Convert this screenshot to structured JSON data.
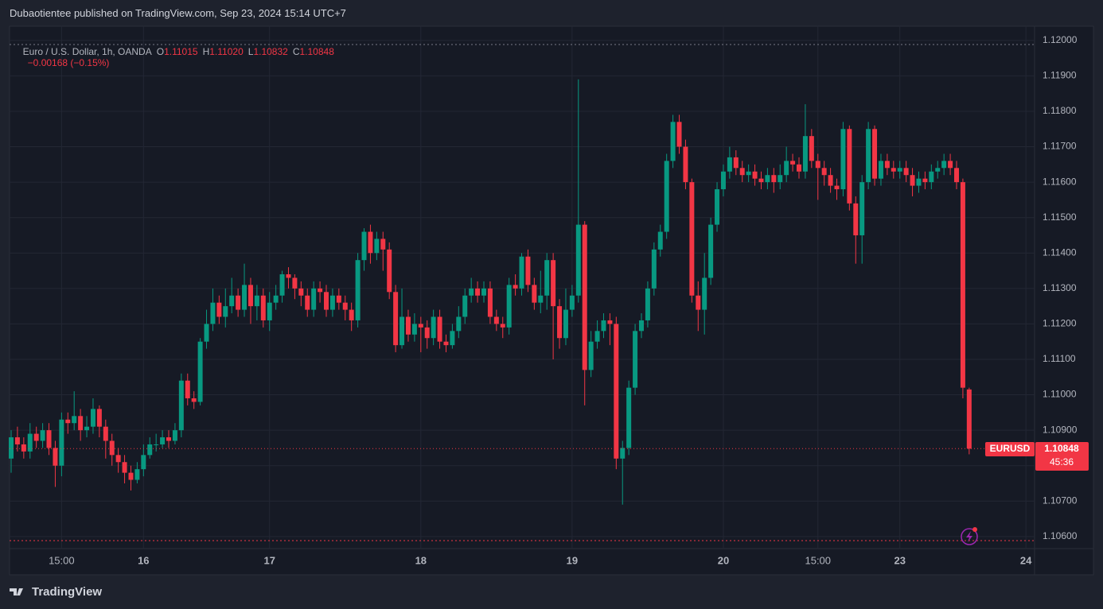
{
  "header": {
    "publisher": "Dubaotientee published on TradingView.com, Sep 23, 2024 15:14 UTC+7"
  },
  "legend": {
    "symbol": "Euro / U.S. Dollar, 1h, OANDA",
    "items": [
      {
        "key": "O",
        "value": "1.11015"
      },
      {
        "key": "H",
        "value": "1.11020"
      },
      {
        "key": "L",
        "value": "1.10832"
      },
      {
        "key": "C",
        "value": "1.10848"
      }
    ],
    "change": "−0.00168 (−0.15%)"
  },
  "price_tag": {
    "symbol": "EURUSD",
    "price": "1.10848",
    "countdown": "45:36"
  },
  "footer": {
    "brand": "TradingView"
  },
  "chart_data": {
    "type": "candlestick",
    "up_color": "#089981",
    "down_color": "#f23645",
    "grid": true,
    "ylim": [
      1.10566,
      1.1204
    ],
    "yticks": [
      {
        "value": 1.106,
        "label": "1.10600"
      },
      {
        "value": 1.107,
        "label": "1.10700"
      },
      {
        "value": 1.108,
        "label": "1.10800"
      },
      {
        "value": 1.109,
        "label": "1.10900"
      },
      {
        "value": 1.11,
        "label": "1.11000"
      },
      {
        "value": 1.111,
        "label": "1.11100"
      },
      {
        "value": 1.112,
        "label": "1.11200"
      },
      {
        "value": 1.113,
        "label": "1.11300"
      },
      {
        "value": 1.114,
        "label": "1.11400"
      },
      {
        "value": 1.115,
        "label": "1.11500"
      },
      {
        "value": 1.116,
        "label": "1.11600"
      },
      {
        "value": 1.117,
        "label": "1.11700"
      },
      {
        "value": 1.118,
        "label": "1.11800"
      },
      {
        "value": 1.119,
        "label": "1.11900"
      },
      {
        "value": 1.12,
        "label": "1.12000"
      }
    ],
    "categories": [
      null,
      null,
      null,
      null,
      null,
      null,
      null,
      null,
      "15:00",
      null,
      null,
      null,
      null,
      null,
      null,
      null,
      null,
      null,
      null,
      null,
      null,
      "16",
      null,
      null,
      null,
      null,
      null,
      null,
      null,
      null,
      null,
      null,
      null,
      null,
      null,
      null,
      null,
      null,
      null,
      null,
      null,
      "17",
      null,
      null,
      null,
      null,
      null,
      null,
      null,
      null,
      null,
      null,
      null,
      null,
      null,
      null,
      null,
      null,
      null,
      null,
      null,
      null,
      null,
      null,
      null,
      "18",
      null,
      null,
      null,
      null,
      null,
      null,
      null,
      null,
      null,
      null,
      null,
      null,
      null,
      null,
      null,
      null,
      null,
      null,
      null,
      null,
      null,
      null,
      null,
      "19",
      null,
      null,
      null,
      null,
      null,
      null,
      null,
      null,
      null,
      null,
      null,
      null,
      null,
      null,
      null,
      null,
      null,
      null,
      null,
      null,
      null,
      null,
      null,
      "20",
      null,
      null,
      null,
      null,
      null,
      null,
      null,
      null,
      null,
      null,
      null,
      null,
      null,
      null,
      "15:00",
      null,
      null,
      null,
      null,
      null,
      null,
      null,
      null,
      null,
      null,
      null,
      null,
      "23",
      null,
      null,
      null,
      null,
      null,
      null,
      null,
      null,
      null,
      null,
      null,
      null,
      null,
      null,
      null,
      null,
      null,
      null,
      null,
      "24"
    ],
    "open": [
      1.1082,
      1.1088,
      1.1086,
      1.1084,
      1.1089,
      1.1087,
      1.109,
      1.1085,
      1.108,
      1.1093,
      1.1092,
      1.1094,
      1.109,
      1.1091,
      1.1096,
      1.1091,
      1.1087,
      1.1083,
      1.1081,
      1.1078,
      1.1076,
      1.1079,
      1.1083,
      1.1086,
      1.1086,
      1.1088,
      1.1087,
      1.109,
      1.1104,
      1.1099,
      1.1098,
      1.1115,
      1.112,
      1.1126,
      1.1122,
      1.1125,
      1.1128,
      1.1124,
      1.1131,
      1.1125,
      1.1128,
      1.1121,
      1.1126,
      1.1128,
      1.1134,
      1.1133,
      1.113,
      1.1128,
      1.1124,
      1.113,
      1.1129,
      1.1124,
      1.1128,
      1.1126,
      1.1124,
      1.1121,
      1.1138,
      1.1146,
      1.114,
      1.1144,
      1.1141,
      1.1129,
      1.1114,
      1.1122,
      1.1117,
      1.112,
      1.1119,
      1.1116,
      1.1122,
      1.1115,
      1.1114,
      1.1118,
      1.1122,
      1.1128,
      1.113,
      1.1128,
      1.113,
      1.1122,
      1.112,
      1.1119,
      1.1131,
      1.113,
      1.1139,
      1.1131,
      1.1126,
      1.1128,
      1.1138,
      1.1125,
      1.1116,
      1.1124,
      1.1128,
      1.1148,
      1.1107,
      1.1115,
      1.1118,
      1.1121,
      1.112,
      1.1082,
      1.1085,
      1.1102,
      1.1118,
      1.1121,
      1.113,
      1.1141,
      1.1146,
      1.1166,
      1.1177,
      1.117,
      1.116,
      1.1128,
      1.1124,
      1.1133,
      1.1148,
      1.1158,
      1.1163,
      1.1167,
      1.1164,
      1.1162,
      1.1163,
      1.1161,
      1.116,
      1.1162,
      1.116,
      1.1162,
      1.1166,
      1.1165,
      1.1163,
      1.1173,
      1.1166,
      1.1164,
      1.1162,
      1.1159,
      1.1158,
      1.1175,
      1.1154,
      1.1145,
      1.116,
      1.1175,
      1.1161,
      1.1166,
      1.1164,
      1.1163,
      1.1164,
      1.1162,
      1.1159,
      1.1161,
      1.116,
      1.1163,
      1.1164,
      1.1166,
      1.1164,
      1.116,
      1.11015,
      null,
      null,
      null,
      null,
      null,
      null,
      null,
      null,
      null
    ],
    "high": [
      1.109,
      1.1091,
      1.1088,
      1.1092,
      1.1091,
      1.1092,
      1.1092,
      1.1087,
      1.1095,
      1.1095,
      1.1101,
      1.1096,
      1.1094,
      1.1099,
      1.1097,
      1.1093,
      1.1089,
      1.1085,
      1.1083,
      1.108,
      1.1081,
      1.1086,
      1.1088,
      1.1089,
      1.109,
      1.109,
      1.1092,
      1.1106,
      1.1106,
      1.1101,
      1.1116,
      1.1124,
      1.113,
      1.1128,
      1.113,
      1.1133,
      1.113,
      1.1137,
      1.1133,
      1.1131,
      1.113,
      1.1129,
      1.1131,
      1.1135,
      1.1136,
      1.1134,
      1.1132,
      1.113,
      1.1132,
      1.1132,
      1.1131,
      1.113,
      1.113,
      1.1128,
      1.1126,
      1.114,
      1.1147,
      1.1148,
      1.1146,
      1.1146,
      1.1143,
      1.1131,
      1.113,
      1.1124,
      1.1123,
      1.1122,
      1.1121,
      1.1124,
      1.1124,
      1.1117,
      1.112,
      1.1125,
      1.113,
      1.1133,
      1.1132,
      1.1132,
      1.1132,
      1.1124,
      1.1122,
      1.1133,
      1.1134,
      1.114,
      1.1141,
      1.1133,
      1.1135,
      1.114,
      1.114,
      1.1127,
      1.113,
      1.1131,
      1.1189,
      1.1149,
      1.1118,
      1.1121,
      1.1123,
      1.1123,
      1.1122,
      1.1087,
      1.1104,
      1.112,
      1.1123,
      1.1132,
      1.1143,
      1.1148,
      1.1168,
      1.1179,
      1.1179,
      1.1172,
      1.1161,
      1.1132,
      1.114,
      1.115,
      1.116,
      1.1165,
      1.117,
      1.1169,
      1.1166,
      1.1165,
      1.1165,
      1.1163,
      1.1164,
      1.1164,
      1.1165,
      1.117,
      1.1168,
      1.1167,
      1.1182,
      1.1175,
      1.1168,
      1.1166,
      1.1164,
      1.1161,
      1.1177,
      1.1176,
      1.1156,
      1.1162,
      1.1177,
      1.1176,
      1.1168,
      1.1168,
      1.1166,
      1.1166,
      1.1166,
      1.1164,
      1.1163,
      1.1163,
      1.1165,
      1.1166,
      1.1168,
      1.1168,
      1.1166,
      1.1161,
      1.1102,
      null,
      null,
      null,
      null,
      null,
      null,
      null,
      null,
      null
    ],
    "low": [
      1.1078,
      1.1084,
      1.1082,
      1.1082,
      1.1085,
      1.1085,
      1.1083,
      1.1074,
      1.1077,
      1.1089,
      1.109,
      1.1087,
      1.1088,
      1.1089,
      1.1088,
      1.1082,
      1.108,
      1.1078,
      1.1075,
      1.1073,
      1.1075,
      1.1077,
      1.1082,
      1.1084,
      1.1085,
      1.1085,
      1.1086,
      1.1088,
      1.1097,
      1.1096,
      1.1097,
      1.1113,
      1.1118,
      1.112,
      1.1119,
      1.1123,
      1.1122,
      1.1122,
      1.112,
      1.1121,
      1.1119,
      1.1118,
      1.1124,
      1.1126,
      1.113,
      1.1127,
      1.1125,
      1.1122,
      1.1122,
      1.1126,
      1.1122,
      1.1122,
      1.1124,
      1.1121,
      1.1118,
      1.1119,
      1.1135,
      1.1137,
      1.1138,
      1.1135,
      1.1127,
      1.1112,
      1.1113,
      1.1115,
      1.1115,
      1.1112,
      1.1113,
      1.1114,
      1.1113,
      1.1112,
      1.1113,
      1.1116,
      1.112,
      1.1126,
      1.1126,
      1.1126,
      1.112,
      1.1118,
      1.1116,
      1.1117,
      1.1128,
      1.1128,
      1.1129,
      1.1124,
      1.1123,
      1.1124,
      1.111,
      1.1113,
      1.1114,
      1.1122,
      1.1126,
      1.1097,
      1.1105,
      1.1113,
      1.1116,
      1.1114,
      1.1079,
      1.1069,
      1.1083,
      1.11,
      1.1116,
      1.1119,
      1.1128,
      1.1139,
      1.1144,
      1.1164,
      1.1168,
      1.1158,
      1.1126,
      1.1118,
      1.1117,
      1.1131,
      1.1146,
      1.1156,
      1.1161,
      1.1162,
      1.116,
      1.116,
      1.1159,
      1.1158,
      1.1158,
      1.1157,
      1.1158,
      1.116,
      1.1163,
      1.1161,
      1.1161,
      1.1164,
      1.1155,
      1.1159,
      1.1157,
      1.1155,
      1.1156,
      1.1152,
      1.1137,
      1.1137,
      1.1158,
      1.1159,
      1.1159,
      1.1162,
      1.1161,
      1.1161,
      1.116,
      1.1156,
      1.1157,
      1.1158,
      1.1158,
      1.1161,
      1.1162,
      1.1162,
      1.1158,
      1.1099,
      1.10832,
      null,
      null,
      null,
      null,
      null,
      null,
      null,
      null,
      null
    ],
    "close": [
      1.1088,
      1.1086,
      1.1084,
      1.1089,
      1.1087,
      1.109,
      1.1085,
      1.108,
      1.1093,
      1.1092,
      1.1094,
      1.109,
      1.1091,
      1.1096,
      1.1091,
      1.1087,
      1.1083,
      1.1081,
      1.1078,
      1.1076,
      1.1079,
      1.1083,
      1.1086,
      1.1086,
      1.1088,
      1.1087,
      1.109,
      1.1104,
      1.1099,
      1.1098,
      1.1115,
      1.112,
      1.1126,
      1.1122,
      1.1125,
      1.1128,
      1.1124,
      1.1131,
      1.1125,
      1.1128,
      1.1121,
      1.1126,
      1.1128,
      1.1134,
      1.1133,
      1.113,
      1.1128,
      1.1124,
      1.113,
      1.1129,
      1.1124,
      1.1128,
      1.1126,
      1.1124,
      1.1121,
      1.1138,
      1.1146,
      1.114,
      1.1144,
      1.1141,
      1.1129,
      1.1114,
      1.1122,
      1.1117,
      1.112,
      1.1119,
      1.1116,
      1.1122,
      1.1115,
      1.1114,
      1.1118,
      1.1122,
      1.1128,
      1.113,
      1.1128,
      1.113,
      1.1122,
      1.112,
      1.1119,
      1.1131,
      1.113,
      1.1139,
      1.1131,
      1.1126,
      1.1128,
      1.1138,
      1.1125,
      1.1116,
      1.1124,
      1.1128,
      1.1148,
      1.1107,
      1.1115,
      1.1118,
      1.1121,
      1.112,
      1.1082,
      1.1085,
      1.1102,
      1.1118,
      1.1121,
      1.113,
      1.1141,
      1.1146,
      1.1166,
      1.1177,
      1.117,
      1.116,
      1.1128,
      1.1124,
      1.1133,
      1.1148,
      1.1158,
      1.1163,
      1.1167,
      1.1164,
      1.1162,
      1.1163,
      1.1161,
      1.116,
      1.1162,
      1.116,
      1.1162,
      1.1166,
      1.1165,
      1.1163,
      1.1173,
      1.1166,
      1.1164,
      1.1162,
      1.1159,
      1.1158,
      1.1175,
      1.1154,
      1.1145,
      1.116,
      1.1175,
      1.1161,
      1.1166,
      1.1164,
      1.1163,
      1.1164,
      1.1162,
      1.1159,
      1.1161,
      1.116,
      1.1163,
      1.1164,
      1.1166,
      1.1164,
      1.116,
      1.1102,
      1.10848,
      null,
      null,
      null,
      null,
      null,
      null,
      null,
      null,
      null
    ]
  }
}
